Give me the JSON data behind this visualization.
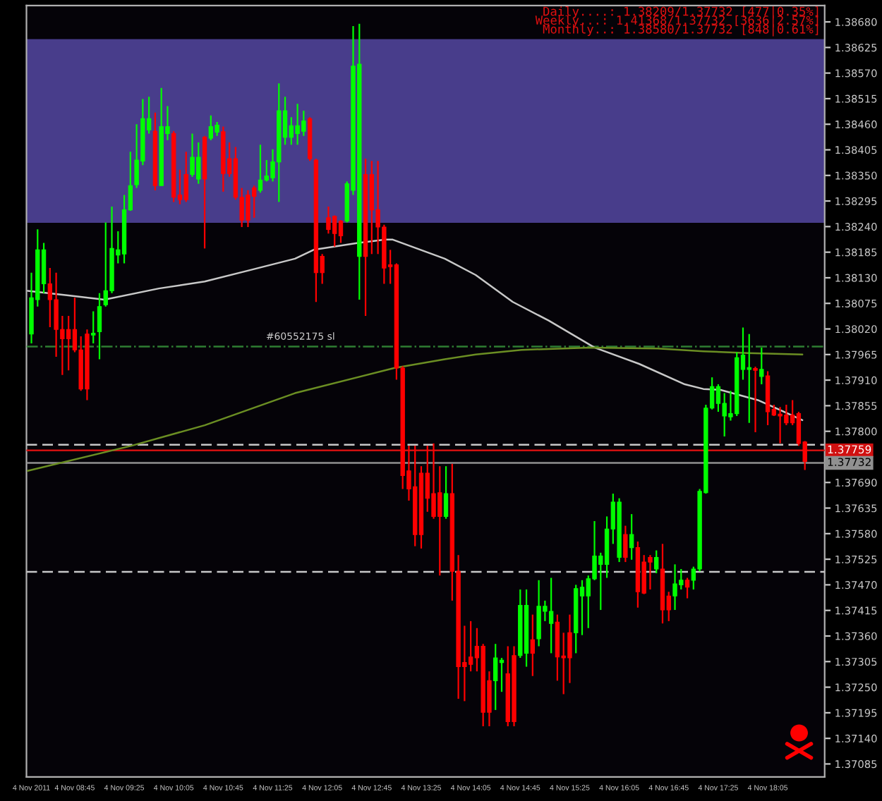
{
  "chart_data": {
    "type": "candlestick",
    "x": [
      "2011-11-04T08:10",
      "2011-11-04T08:15",
      "2011-11-04T08:20",
      "2011-11-04T08:25",
      "2011-11-04T08:30",
      "2011-11-04T08:35",
      "2011-11-04T08:40",
      "2011-11-04T08:45",
      "2011-11-04T08:50",
      "2011-11-04T08:55",
      "2011-11-04T09:00",
      "2011-11-04T09:05",
      "2011-11-04T09:10",
      "2011-11-04T09:15",
      "2011-11-04T09:20",
      "2011-11-04T09:25",
      "2011-11-04T09:30",
      "2011-11-04T09:35",
      "2011-11-04T09:40",
      "2011-11-04T09:45",
      "2011-11-04T09:50",
      "2011-11-04T09:55",
      "2011-11-04T10:00",
      "2011-11-04T10:05",
      "2011-11-04T10:10",
      "2011-11-04T10:15",
      "2011-11-04T10:20",
      "2011-11-04T10:25",
      "2011-11-04T10:30",
      "2011-11-04T10:35",
      "2011-11-04T10:40",
      "2011-11-04T10:45",
      "2011-11-04T10:50",
      "2011-11-04T10:55",
      "2011-11-04T11:00",
      "2011-11-04T11:05",
      "2011-11-04T11:10",
      "2011-11-04T11:15",
      "2011-11-04T11:20",
      "2011-11-04T11:25",
      "2011-11-04T11:30",
      "2011-11-04T11:35",
      "2011-11-04T11:40",
      "2011-11-04T11:45",
      "2011-11-04T11:50",
      "2011-11-04T11:55",
      "2011-11-04T12:00",
      "2011-11-04T12:05",
      "2011-11-04T12:10",
      "2011-11-04T12:15",
      "2011-11-04T12:20",
      "2011-11-04T12:25",
      "2011-11-04T12:30",
      "2011-11-04T12:35",
      "2011-11-04T12:40",
      "2011-11-04T12:45",
      "2011-11-04T12:50",
      "2011-11-04T12:55",
      "2011-11-04T13:00",
      "2011-11-04T13:05",
      "2011-11-04T13:10",
      "2011-11-04T13:15",
      "2011-11-04T13:20",
      "2011-11-04T13:25",
      "2011-11-04T13:30",
      "2011-11-04T13:35",
      "2011-11-04T13:40",
      "2011-11-04T13:45",
      "2011-11-04T13:50",
      "2011-11-04T13:55",
      "2011-11-04T14:00",
      "2011-11-04T14:05",
      "2011-11-04T14:10",
      "2011-11-04T14:15",
      "2011-11-04T14:20",
      "2011-11-04T14:25",
      "2011-11-04T14:30",
      "2011-11-04T14:35",
      "2011-11-04T14:40",
      "2011-11-04T14:45",
      "2011-11-04T14:50",
      "2011-11-04T14:55",
      "2011-11-04T15:00",
      "2011-11-04T15:05",
      "2011-11-04T15:10",
      "2011-11-04T15:15",
      "2011-11-04T15:20",
      "2011-11-04T15:25",
      "2011-11-04T15:30",
      "2011-11-04T15:35",
      "2011-11-04T15:40",
      "2011-11-04T15:45",
      "2011-11-04T15:50",
      "2011-11-04T15:55",
      "2011-11-04T16:00",
      "2011-11-04T16:05",
      "2011-11-04T16:10",
      "2011-11-04T16:15",
      "2011-11-04T16:20",
      "2011-11-04T16:25",
      "2011-11-04T16:30",
      "2011-11-04T16:35",
      "2011-11-04T16:40",
      "2011-11-04T16:45",
      "2011-11-04T16:50",
      "2011-11-04T16:55",
      "2011-11-04T17:00",
      "2011-11-04T17:05",
      "2011-11-04T17:10",
      "2011-11-04T17:15",
      "2011-11-04T17:20",
      "2011-11-04T17:25",
      "2011-11-04T17:30",
      "2011-11-04T17:35",
      "2011-11-04T17:40",
      "2011-11-04T17:45",
      "2011-11-04T17:50",
      "2011-11-04T17:55",
      "2011-11-04T18:00",
      "2011-11-04T18:05",
      "2011-11-04T18:10",
      "2011-11-04T18:15",
      "2011-11-04T18:20",
      "2011-11-04T18:25",
      "2011-11-04T18:30",
      "2011-11-04T18:35"
    ],
    "ohlc": [
      [
        1.38009,
        1.38141,
        1.37989,
        1.38087
      ],
      [
        1.38083,
        1.38234,
        1.38068,
        1.3819
      ],
      [
        1.38117,
        1.38205,
        1.38097,
        1.3819
      ],
      [
        1.38117,
        1.38151,
        1.38024,
        1.38083
      ],
      [
        1.38083,
        1.38141,
        1.3796,
        1.38019
      ],
      [
        1.38019,
        1.38048,
        1.37921,
        1.37999
      ],
      [
        1.38019,
        1.38048,
        1.37931,
        1.37999
      ],
      [
        1.38019,
        1.38087,
        1.3797,
        1.37975
      ],
      [
        1.37975,
        1.38004,
        1.37887,
        1.37891
      ],
      [
        1.38009,
        1.38019,
        1.37867,
        1.37891
      ],
      [
        1.38007,
        1.38058,
        1.37989,
        1.38011
      ],
      [
        1.38014,
        1.38097,
        1.37955,
        1.38068
      ],
      [
        1.38072,
        1.38249,
        1.38068,
        1.38102
      ],
      [
        1.38102,
        1.38283,
        1.38097,
        1.38193
      ],
      [
        1.38179,
        1.3823,
        1.38161,
        1.3819
      ],
      [
        1.38181,
        1.38308,
        1.38161,
        1.38276
      ],
      [
        1.38276,
        1.38401,
        1.38274,
        1.38328
      ],
      [
        1.3833,
        1.3846,
        1.38323,
        1.38383
      ],
      [
        1.38381,
        1.38514,
        1.38372,
        1.38472
      ],
      [
        1.38448,
        1.38519,
        1.3844,
        1.38472
      ],
      [
        1.38445,
        1.38485,
        1.38318,
        1.38328
      ],
      [
        1.38328,
        1.38538,
        1.38328,
        1.38455
      ],
      [
        1.3844,
        1.38499,
        1.38426,
        1.38455
      ],
      [
        1.3844,
        1.38445,
        1.38293,
        1.38303
      ],
      [
        1.38308,
        1.38362,
        1.38288,
        1.38298
      ],
      [
        1.38352,
        1.38401,
        1.38293,
        1.38298
      ],
      [
        1.38352,
        1.3844,
        1.38347,
        1.38389
      ],
      [
        1.38342,
        1.38421,
        1.38332,
        1.38389
      ],
      [
        1.38432,
        1.38435,
        1.38193,
        1.38342
      ],
      [
        1.3843,
        1.38479,
        1.38426,
        1.38455
      ],
      [
        1.38443,
        1.38465,
        1.38435,
        1.38458
      ],
      [
        1.38444,
        1.38455,
        1.38315,
        1.38354
      ],
      [
        1.38386,
        1.38421,
        1.38347,
        1.38354
      ],
      [
        1.38386,
        1.38411,
        1.38298,
        1.38303
      ],
      [
        1.38303,
        1.38323,
        1.38239,
        1.38254
      ],
      [
        1.38308,
        1.38318,
        1.38239,
        1.38254
      ],
      [
        1.38323,
        1.38328,
        1.38259,
        1.38305
      ],
      [
        1.38318,
        1.38416,
        1.38313,
        1.3834
      ],
      [
        1.3834,
        1.38383,
        1.38337,
        1.38349
      ],
      [
        1.38345,
        1.38406,
        1.38337,
        1.38379
      ],
      [
        1.38379,
        1.38548,
        1.38293,
        1.38489
      ],
      [
        1.38432,
        1.38519,
        1.38416,
        1.38489
      ],
      [
        1.38432,
        1.38475,
        1.38416,
        1.38457
      ],
      [
        1.3844,
        1.38504,
        1.38416,
        1.38457
      ],
      [
        1.38445,
        1.38489,
        1.38435,
        1.38467
      ],
      [
        1.38472,
        1.38475,
        1.38381,
        1.38386
      ],
      [
        1.38383,
        1.38386,
        1.38078,
        1.38141
      ],
      [
        1.38176,
        1.38181,
        1.38117,
        1.38141
      ],
      [
        1.38259,
        1.38283,
        1.38225,
        1.38234
      ],
      [
        1.38262,
        1.38264,
        1.38197,
        1.38225
      ],
      [
        1.38252,
        1.38254,
        1.38205,
        1.3822
      ],
      [
        1.38252,
        1.38337,
        1.38249,
        1.38332
      ],
      [
        1.38318,
        1.38671,
        1.38308,
        1.38585
      ],
      [
        1.38176,
        1.38676,
        1.38083,
        1.38589
      ],
      [
        1.38352,
        1.38386,
        1.38048,
        1.38176
      ],
      [
        1.38352,
        1.38381,
        1.38181,
        1.38276
      ],
      [
        1.38276,
        1.38381,
        1.38181,
        1.38239
      ],
      [
        1.38239,
        1.38244,
        1.38117,
        1.38151
      ],
      [
        1.38158,
        1.3819,
        1.38117,
        1.38154
      ],
      [
        1.38158,
        1.38161,
        1.37911,
        1.37936
      ],
      [
        1.37936,
        1.3794,
        1.37676,
        1.37705
      ],
      [
        1.37715,
        1.37769,
        1.37651,
        1.37676
      ],
      [
        1.37681,
        1.37769,
        1.37553,
        1.37578
      ],
      [
        1.3771,
        1.37725,
        1.37548,
        1.37578
      ],
      [
        1.3771,
        1.37769,
        1.37627,
        1.37656
      ],
      [
        1.37666,
        1.37774,
        1.37612,
        1.37617
      ],
      [
        1.37668,
        1.37725,
        1.3749,
        1.37617
      ],
      [
        1.37617,
        1.37725,
        1.37612,
        1.37666
      ],
      [
        1.37666,
        1.3773,
        1.37436,
        1.37499
      ],
      [
        1.37499,
        1.37534,
        1.37225,
        1.37294
      ],
      [
        1.37303,
        1.37382,
        1.3722,
        1.37294
      ],
      [
        1.37315,
        1.37392,
        1.37284,
        1.37299
      ],
      [
        1.37338,
        1.37377,
        1.37284,
        1.37313
      ],
      [
        1.37338,
        1.37343,
        1.37166,
        1.37196
      ],
      [
        1.37264,
        1.37284,
        1.37166,
        1.37196
      ],
      [
        1.37264,
        1.37343,
        1.37201,
        1.37313
      ],
      [
        1.37303,
        1.37313,
        1.3724,
        1.37308
      ],
      [
        1.37279,
        1.37338,
        1.37166,
        1.37176
      ],
      [
        1.37318,
        1.37338,
        1.37166,
        1.37176
      ],
      [
        1.37318,
        1.3746,
        1.37313,
        1.37426
      ],
      [
        1.37323,
        1.3746,
        1.37294,
        1.37426
      ],
      [
        1.37352,
        1.37406,
        1.37274,
        1.37323
      ],
      [
        1.37354,
        1.3748,
        1.37338,
        1.37424
      ],
      [
        1.37413,
        1.37436,
        1.37392,
        1.37424
      ],
      [
        1.37387,
        1.37485,
        1.37323,
        1.37413
      ],
      [
        1.3739,
        1.37406,
        1.37264,
        1.37315
      ],
      [
        1.37317,
        1.37367,
        1.37235,
        1.37313
      ],
      [
        1.37367,
        1.37406,
        1.37259,
        1.37313
      ],
      [
        1.37367,
        1.3747,
        1.37323,
        1.37462
      ],
      [
        1.37446,
        1.3748,
        1.37362,
        1.37465
      ],
      [
        1.37446,
        1.3749,
        1.37377,
        1.37483
      ],
      [
        1.37483,
        1.37607,
        1.3748,
        1.37532
      ],
      [
        1.37514,
        1.37539,
        1.37416,
        1.37532
      ],
      [
        1.37514,
        1.37617,
        1.37485,
        1.3759
      ],
      [
        1.3759,
        1.37666,
        1.37558,
        1.37648
      ],
      [
        1.37529,
        1.37656,
        1.37519,
        1.37648
      ],
      [
        1.37578,
        1.37597,
        1.37519,
        1.37529
      ],
      [
        1.3755,
        1.37622,
        1.37524,
        1.37578
      ],
      [
        1.3755,
        1.37563,
        1.37421,
        1.37455
      ],
      [
        1.37519,
        1.37534,
        1.3745,
        1.37452
      ],
      [
        1.37529,
        1.37534,
        1.3746,
        1.37519
      ],
      [
        1.37504,
        1.37544,
        1.37495,
        1.37529
      ],
      [
        1.37504,
        1.37558,
        1.37387,
        1.37416
      ],
      [
        1.37446,
        1.37455,
        1.37392,
        1.37416
      ],
      [
        1.37446,
        1.37514,
        1.37416,
        1.37472
      ],
      [
        1.3747,
        1.37504,
        1.3746,
        1.3748
      ],
      [
        1.3748,
        1.37485,
        1.37441,
        1.37465
      ],
      [
        1.3748,
        1.37509,
        1.3746,
        1.37504
      ],
      [
        1.37504,
        1.37676,
        1.37499,
        1.37671
      ],
      [
        1.37668,
        1.37857,
        1.37666,
        1.3785
      ],
      [
        1.3785,
        1.37916,
        1.37847,
        1.37896
      ],
      [
        1.3786,
        1.37901,
        1.37842,
        1.37896
      ],
      [
        1.37833,
        1.37882,
        1.37789,
        1.3786
      ],
      [
        1.37831,
        1.37887,
        1.37823,
        1.37838
      ],
      [
        1.37838,
        1.3797,
        1.37833,
        1.37958
      ],
      [
        1.37933,
        1.38023,
        1.37911,
        1.37964
      ],
      [
        1.37933,
        1.38009,
        1.37818,
        1.37937
      ],
      [
        1.37935,
        1.37939,
        1.37798,
        1.37931
      ],
      [
        1.37918,
        1.3798,
        1.37901,
        1.37933
      ],
      [
        1.37919,
        1.37929,
        1.37813,
        1.37842
      ],
      [
        1.37847,
        1.37857,
        1.37833,
        1.37835
      ],
      [
        1.37837,
        1.37852,
        1.37774,
        1.37833
      ],
      [
        1.37835,
        1.37857,
        1.37813,
        1.37818
      ],
      [
        1.37835,
        1.37867,
        1.37813,
        1.37818
      ],
      [
        1.37838,
        1.37842,
        1.37769,
        1.37774
      ],
      [
        1.37777,
        1.37779,
        1.37717,
        1.37735
      ]
    ],
    "colors": [
      "#00ff00",
      "#00ff00",
      "#00ff00",
      "#ff0000",
      "#ff0000",
      "#ff0000",
      "#ff0000",
      "#ff0000",
      "#ff0000",
      "#ff0000",
      "#00ff00",
      "#00ff00",
      "#00ff00",
      "#00ff00",
      "#00ff00",
      "#00ff00",
      "#00ff00",
      "#00ff00",
      "#00ff00",
      "#00ff00",
      "#ff0000",
      "#00ff00",
      "#00ff00",
      "#ff0000",
      "#ff0000",
      "#ff0000",
      "#00ff00",
      "#00ff00",
      "#ff0000",
      "#00ff00",
      "#00ff00",
      "#ff0000",
      "#ff0000",
      "#ff0000",
      "#ff0000",
      "#ff0000",
      "#ff0000",
      "#00ff00",
      "#00ff00",
      "#00ff00",
      "#00ff00",
      "#00ff00",
      "#00ff00",
      "#00ff00",
      "#00ff00",
      "#ff0000",
      "#ff0000",
      "#ff0000",
      "#ff0000",
      "#ff0000",
      "#ff0000",
      "#00ff00",
      "#00ff00",
      "#00ff00",
      "#ff0000",
      "#ff0000",
      "#ff0000",
      "#ff0000",
      "#ff0000",
      "#ff0000",
      "#ff0000",
      "#ff0000",
      "#ff0000",
      "#ff0000",
      "#ff0000",
      "#ff0000",
      "#ff0000",
      "#00ff00",
      "#ff0000",
      "#ff0000",
      "#ff0000",
      "#ff0000",
      "#ff0000",
      "#ff0000",
      "#ff0000",
      "#00ff00",
      "#00ff00",
      "#ff0000",
      "#ff0000",
      "#00ff00",
      "#00ff00",
      "#ff0000",
      "#00ff00",
      "#00ff00",
      "#00ff00",
      "#ff0000",
      "#ff0000",
      "#ff0000",
      "#00ff00",
      "#00ff00",
      "#00ff00",
      "#00ff00",
      "#00ff00",
      "#00ff00",
      "#00ff00",
      "#00ff00",
      "#ff0000",
      "#00ff00",
      "#ff0000",
      "#ff0000",
      "#ff0000",
      "#00ff00",
      "#ff0000",
      "#ff0000",
      "#00ff00",
      "#00ff00",
      "#ff0000",
      "#00ff00",
      "#00ff00",
      "#00ff00",
      "#00ff00",
      "#00ff00",
      "#00ff00",
      "#00ff00",
      "#00ff00",
      "#00ff00",
      "#00ff00",
      "#ff0000",
      "#00ff00",
      "#ff0000",
      "#ff0000",
      "#ff0000",
      "#ff0000",
      "#ff0000",
      "#ff0000",
      "#ff0000"
    ],
    "series": [
      {
        "type": "line",
        "color": "#c8c8c8",
        "x": [
          "2011-11-04T08:07",
          "2011-11-04T08:40",
          "2011-11-04T09:09",
          "2011-11-04T09:53",
          "2011-11-04T10:30",
          "2011-11-04T11:06",
          "2011-11-04T11:43",
          "2011-11-04T11:58",
          "2011-11-04T12:34",
          "2011-11-04T12:56",
          "2011-11-04T13:02",
          "2011-11-04T13:44",
          "2011-11-04T14:09",
          "2011-11-04T14:39",
          "2011-11-04T15:08",
          "2011-11-04T15:45",
          "2011-11-04T16:21",
          "2011-11-04T16:58",
          "2011-11-04T17:13",
          "2011-11-04T17:27",
          "2011-11-04T17:57",
          "2011-11-04T18:18",
          "2011-11-04T18:33"
        ],
        "values": [
          1.38102,
          1.38092,
          1.38083,
          1.38107,
          1.38122,
          1.38146,
          1.38171,
          1.3819,
          1.38205,
          1.38212,
          1.38212,
          1.38171,
          1.38136,
          1.38078,
          1.38038,
          1.3798,
          1.37945,
          1.37901,
          1.37891,
          1.37889,
          1.37867,
          1.37842,
          1.37824
        ]
      },
      {
        "type": "line",
        "color": "#6b8e23",
        "x": [
          "2011-11-04T08:07",
          "2011-11-04T09:31",
          "2011-11-04T10:30",
          "2011-11-04T11:43",
          "2011-11-04T13:03",
          "2011-11-04T13:44",
          "2011-11-04T14:09",
          "2011-11-04T14:46",
          "2011-11-04T15:41",
          "2011-11-04T16:36",
          "2011-11-04T17:13",
          "2011-11-04T17:49",
          "2011-11-04T18:33"
        ],
        "values": [
          1.37715,
          1.37769,
          1.37813,
          1.37882,
          1.37936,
          1.37955,
          1.37965,
          1.37975,
          1.3798,
          1.37978,
          1.37972,
          1.37968,
          1.37965
        ]
      }
    ],
    "xlim": [
      "2011-11-04T08:06",
      "2011-11-04T18:51"
    ],
    "ylim": [
      1.37057,
      1.38715
    ],
    "xticks": [
      {
        "value": "2011-11-04T08:10",
        "label": "4 Nov 2011"
      },
      {
        "value": "2011-11-04T08:45",
        "label": "4 Nov 08:45"
      },
      {
        "value": "2011-11-04T09:25",
        "label": "4 Nov 09:25"
      },
      {
        "value": "2011-11-04T10:05",
        "label": "4 Nov 10:05"
      },
      {
        "value": "2011-11-04T10:45",
        "label": "4 Nov 10:45"
      },
      {
        "value": "2011-11-04T11:25",
        "label": "4 Nov 11:25"
      },
      {
        "value": "2011-11-04T12:05",
        "label": "4 Nov 12:05"
      },
      {
        "value": "2011-11-04T12:45",
        "label": "4 Nov 12:45"
      },
      {
        "value": "2011-11-04T13:25",
        "label": "4 Nov 13:25"
      },
      {
        "value": "2011-11-04T14:05",
        "label": "4 Nov 14:05"
      },
      {
        "value": "2011-11-04T14:45",
        "label": "4 Nov 14:45"
      },
      {
        "value": "2011-11-04T15:25",
        "label": "4 Nov 15:25"
      },
      {
        "value": "2011-11-04T16:05",
        "label": "4 Nov 16:05"
      },
      {
        "value": "2011-11-04T16:45",
        "label": "4 Nov 16:45"
      },
      {
        "value": "2011-11-04T17:25",
        "label": "4 Nov 17:25"
      },
      {
        "value": "2011-11-04T18:05",
        "label": "4 Nov 18:05"
      }
    ],
    "yticks": [
      1.37085,
      {
        "value": 1.3714,
        "label": "1.37140"
      },
      1.37195,
      {
        "value": 1.3725,
        "label": "1.37250"
      },
      1.37305,
      {
        "value": 1.3736,
        "label": "1.37360"
      },
      1.37415,
      {
        "value": 1.3747,
        "label": "1.37470"
      },
      1.37525,
      {
        "value": 1.3758,
        "label": "1.37580"
      },
      1.37635,
      {
        "value": 1.3769,
        "label": "1.37690"
      },
      {
        "value": 1.378,
        "label": "1.37800"
      },
      1.37855,
      {
        "value": 1.3791,
        "label": "1.37910"
      },
      1.37965,
      {
        "value": 1.3802,
        "label": "1.38020"
      },
      1.38075,
      {
        "value": 1.3813,
        "label": "1.38130"
      },
      1.38185,
      {
        "value": 1.3824,
        "label": "1.38240"
      },
      1.38295,
      {
        "value": 1.3835,
        "label": "1.38350"
      },
      1.38405,
      {
        "value": 1.3846,
        "label": "1.38460"
      },
      1.38515,
      {
        "value": 1.3857,
        "label": "1.38570"
      },
      1.38625,
      {
        "value": 1.3868,
        "label": "1.38680"
      }
    ],
    "ref_lines": [
      {
        "axis": "y",
        "value": 1.37982,
        "label": "#60552175 sl",
        "color": "#2e7d32",
        "line_style": "dashdot"
      },
      {
        "axis": "y",
        "value": 1.37771,
        "color": "#c8c8c8",
        "line_style": "dashed"
      },
      {
        "axis": "y",
        "value": 1.37759,
        "label": "1.37759",
        "color": "#d01010",
        "line_style": "solid"
      },
      {
        "axis": "y",
        "value": 1.37732,
        "label": "1.37732",
        "color": "#909090",
        "line_style": "solid"
      },
      {
        "axis": "y",
        "value": 1.37498,
        "color": "#c8c8c8",
        "line_style": "dashed"
      }
    ],
    "bands": [
      {
        "axis": "y",
        "from": 1.38248,
        "to": 1.38643,
        "color": "#483d8b"
      }
    ],
    "annotations": [
      "Daily....: 1.38209/1.37732 [477|0.35%]",
      "Weekly...: 1.41368/1.37732 [3636|2.57%]",
      "Monthly..: 1.38580/1.37732 [848|0.61%]"
    ],
    "grid": false,
    "legend": false
  }
}
